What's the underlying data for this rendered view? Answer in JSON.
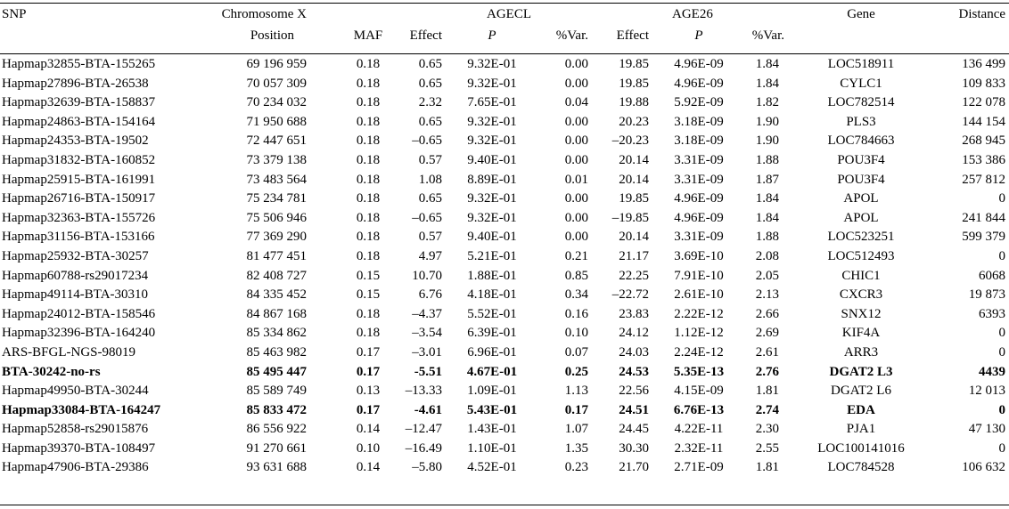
{
  "headers": {
    "snp": "SNP",
    "chromosome_line1": "Chromosome X",
    "chromosome_line2": "Position",
    "maf": "MAF",
    "agecl": "AGECL",
    "age26": "AGE26",
    "effect": "Effect",
    "p": "P",
    "var": "%Var.",
    "gene": "Gene",
    "distance": "Distance"
  },
  "rows": [
    {
      "snp": "Hapmap32855-BTA-155265",
      "pos": "69 196 959",
      "maf": "0.18",
      "e1": "0.65",
      "p1": "9.32E-01",
      "v1": "0.00",
      "e2": "19.85",
      "p2": "4.96E-09",
      "v2": "1.84",
      "gene": "LOC518911",
      "dist": "136 499",
      "bold": false
    },
    {
      "snp": "Hapmap27896-BTA-26538",
      "pos": "70 057 309",
      "maf": "0.18",
      "e1": "0.65",
      "p1": "9.32E-01",
      "v1": "0.00",
      "e2": "19.85",
      "p2": "4.96E-09",
      "v2": "1.84",
      "gene": "CYLC1",
      "dist": "109 833",
      "bold": false
    },
    {
      "snp": "Hapmap32639-BTA-158837",
      "pos": "70 234 032",
      "maf": "0.18",
      "e1": "2.32",
      "p1": "7.65E-01",
      "v1": "0.04",
      "e2": "19.88",
      "p2": "5.92E-09",
      "v2": "1.82",
      "gene": "LOC782514",
      "dist": "122 078",
      "bold": false
    },
    {
      "snp": "Hapmap24863-BTA-154164",
      "pos": "71 950 688",
      "maf": "0.18",
      "e1": "0.65",
      "p1": "9.32E-01",
      "v1": "0.00",
      "e2": "20.23",
      "p2": "3.18E-09",
      "v2": "1.90",
      "gene": "PLS3",
      "dist": "144 154",
      "bold": false
    },
    {
      "snp": "Hapmap24353-BTA-19502",
      "pos": "72 447 651",
      "maf": "0.18",
      "e1": "–0.65",
      "p1": "9.32E-01",
      "v1": "0.00",
      "e2": "–20.23",
      "p2": "3.18E-09",
      "v2": "1.90",
      "gene": "LOC784663",
      "dist": "268 945",
      "bold": false
    },
    {
      "snp": "Hapmap31832-BTA-160852",
      "pos": "73 379 138",
      "maf": "0.18",
      "e1": "0.57",
      "p1": "9.40E-01",
      "v1": "0.00",
      "e2": "20.14",
      "p2": "3.31E-09",
      "v2": "1.88",
      "gene": "POU3F4",
      "dist": "153 386",
      "bold": false
    },
    {
      "snp": "Hapmap25915-BTA-161991",
      "pos": "73 483 564",
      "maf": "0.18",
      "e1": "1.08",
      "p1": "8.89E-01",
      "v1": "0.01",
      "e2": "20.14",
      "p2": "3.31E-09",
      "v2": "1.87",
      "gene": "POU3F4",
      "dist": "257 812",
      "bold": false
    },
    {
      "snp": "Hapmap26716-BTA-150917",
      "pos": "75 234 781",
      "maf": "0.18",
      "e1": "0.65",
      "p1": "9.32E-01",
      "v1": "0.00",
      "e2": "19.85",
      "p2": "4.96E-09",
      "v2": "1.84",
      "gene": "APOL",
      "dist": "0",
      "bold": false
    },
    {
      "snp": "Hapmap32363-BTA-155726",
      "pos": "75 506 946",
      "maf": "0.18",
      "e1": "–0.65",
      "p1": "9.32E-01",
      "v1": "0.00",
      "e2": "–19.85",
      "p2": "4.96E-09",
      "v2": "1.84",
      "gene": "APOL",
      "dist": "241 844",
      "bold": false
    },
    {
      "snp": "Hapmap31156-BTA-153166",
      "pos": "77 369 290",
      "maf": "0.18",
      "e1": "0.57",
      "p1": "9.40E-01",
      "v1": "0.00",
      "e2": "20.14",
      "p2": "3.31E-09",
      "v2": "1.88",
      "gene": "LOC523251",
      "dist": "599 379",
      "bold": false
    },
    {
      "snp": "Hapmap25932-BTA-30257",
      "pos": "81 477 451",
      "maf": "0.18",
      "e1": "4.97",
      "p1": "5.21E-01",
      "v1": "0.21",
      "e2": "21.17",
      "p2": "3.69E-10",
      "v2": "2.08",
      "gene": "LOC512493",
      "dist": "0",
      "bold": false
    },
    {
      "snp": "Hapmap60788-rs29017234",
      "pos": "82 408 727",
      "maf": "0.15",
      "e1": "10.70",
      "p1": "1.88E-01",
      "v1": "0.85",
      "e2": "22.25",
      "p2": "7.91E-10",
      "v2": "2.05",
      "gene": "CHIC1",
      "dist": "6068",
      "bold": false
    },
    {
      "snp": "Hapmap49114-BTA-30310",
      "pos": "84 335 452",
      "maf": "0.15",
      "e1": "6.76",
      "p1": "4.18E-01",
      "v1": "0.34",
      "e2": "–22.72",
      "p2": "2.61E-10",
      "v2": "2.13",
      "gene": "CXCR3",
      "dist": "19 873",
      "bold": false
    },
    {
      "snp": "Hapmap24012-BTA-158546",
      "pos": "84 867 168",
      "maf": "0.18",
      "e1": "–4.37",
      "p1": "5.52E-01",
      "v1": "0.16",
      "e2": "23.83",
      "p2": "2.22E-12",
      "v2": "2.66",
      "gene": "SNX12",
      "dist": "6393",
      "bold": false
    },
    {
      "snp": "Hapmap32396-BTA-164240",
      "pos": "85 334 862",
      "maf": "0.18",
      "e1": "–3.54",
      "p1": "6.39E-01",
      "v1": "0.10",
      "e2": "24.12",
      "p2": "1.12E-12",
      "v2": "2.69",
      "gene": "KIF4A",
      "dist": "0",
      "bold": false
    },
    {
      "snp": "ARS-BFGL-NGS-98019",
      "pos": "85 463 982",
      "maf": "0.17",
      "e1": "–3.01",
      "p1": "6.96E-01",
      "v1": "0.07",
      "e2": "24.03",
      "p2": "2.24E-12",
      "v2": "2.61",
      "gene": "ARR3",
      "dist": "0",
      "bold": false
    },
    {
      "snp": "BTA-30242-no-rs",
      "pos": "85 495 447",
      "maf": "0.17",
      "e1": "-5.51",
      "p1": "4.67E-01",
      "v1": "0.25",
      "e2": "24.53",
      "p2": "5.35E-13",
      "v2": "2.76",
      "gene": "DGAT2 L3",
      "dist": "4439",
      "bold": true
    },
    {
      "snp": "Hapmap49950-BTA-30244",
      "pos": "85 589 749",
      "maf": "0.13",
      "e1": "–13.33",
      "p1": "1.09E-01",
      "v1": "1.13",
      "e2": "22.56",
      "p2": "4.15E-09",
      "v2": "1.81",
      "gene": "DGAT2 L6",
      "dist": "12 013",
      "bold": false
    },
    {
      "snp": "Hapmap33084-BTA-164247",
      "pos": "85 833 472",
      "maf": "0.17",
      "e1": "-4.61",
      "p1": "5.43E-01",
      "v1": "0.17",
      "e2": "24.51",
      "p2": "6.76E-13",
      "v2": "2.74",
      "gene": "EDA",
      "dist": "0",
      "bold": true
    },
    {
      "snp": "Hapmap52858-rs29015876",
      "pos": "86 556 922",
      "maf": "0.14",
      "e1": "–12.47",
      "p1": "1.43E-01",
      "v1": "1.07",
      "e2": "24.45",
      "p2": "4.22E-11",
      "v2": "2.30",
      "gene": "PJA1",
      "dist": "47 130",
      "bold": false
    },
    {
      "snp": "Hapmap39370-BTA-108497",
      "pos": "91 270 661",
      "maf": "0.10",
      "e1": "–16.49",
      "p1": "1.10E-01",
      "v1": "1.35",
      "e2": "30.30",
      "p2": "2.32E-11",
      "v2": "2.55",
      "gene": "LOC100141016",
      "dist": "0",
      "bold": false
    },
    {
      "snp": "Hapmap47906-BTA-29386",
      "pos": "93 631 688",
      "maf": "0.14",
      "e1": "–5.80",
      "p1": "4.52E-01",
      "v1": "0.23",
      "e2": "21.70",
      "p2": "2.71E-09",
      "v2": "1.81",
      "gene": "LOC784528",
      "dist": "106 632",
      "bold": false
    }
  ]
}
